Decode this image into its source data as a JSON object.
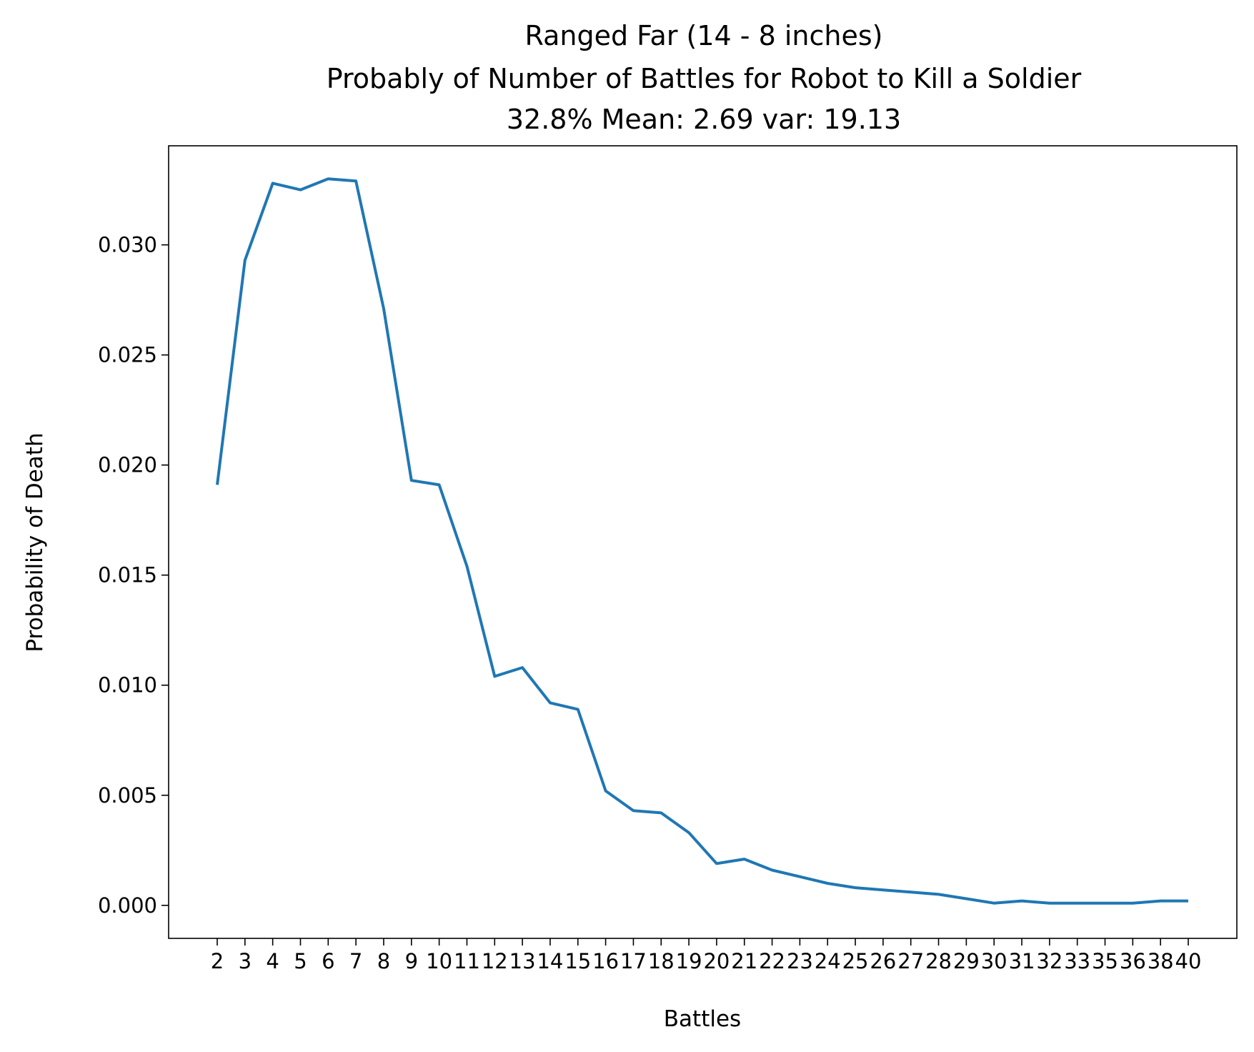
{
  "chart_data": {
    "type": "line",
    "title_lines": [
      "Ranged Far (14 - 8 inches)",
      "Probably of Number of Battles for Robot to Kill a Soldier",
      "32.8% Mean: 2.69 var: 19.13"
    ],
    "xlabel": "Battles",
    "ylabel": "Probability of Death",
    "categories": [
      "2",
      "3",
      "4",
      "5",
      "6",
      "7",
      "8",
      "9",
      "10",
      "11",
      "12",
      "13",
      "14",
      "15",
      "16",
      "17",
      "18",
      "19",
      "20",
      "21",
      "22",
      "23",
      "24",
      "25",
      "26",
      "27",
      "28",
      "29",
      "30",
      "31",
      "32",
      "33",
      "35",
      "36",
      "38",
      "40"
    ],
    "y_ticks": [
      "0.000",
      "0.005",
      "0.010",
      "0.015",
      "0.020",
      "0.025",
      "0.030"
    ],
    "ylim": [
      -0.0015,
      0.0345
    ],
    "grid": false,
    "legend": "none",
    "series_color": "#1f77b4",
    "values": [
      0.0191,
      0.0293,
      0.0328,
      0.0325,
      0.033,
      0.0329,
      0.0271,
      0.0193,
      0.0191,
      0.0154,
      0.0104,
      0.0108,
      0.0092,
      0.0089,
      0.0052,
      0.0043,
      0.0042,
      0.0033,
      0.0019,
      0.0021,
      0.0016,
      0.0013,
      0.001,
      0.0008,
      0.0007,
      0.0006,
      0.0005,
      0.0003,
      0.0001,
      0.0002,
      0.0001,
      0.0001,
      0.0001,
      0.0001,
      0.0002,
      0.0002
    ]
  }
}
